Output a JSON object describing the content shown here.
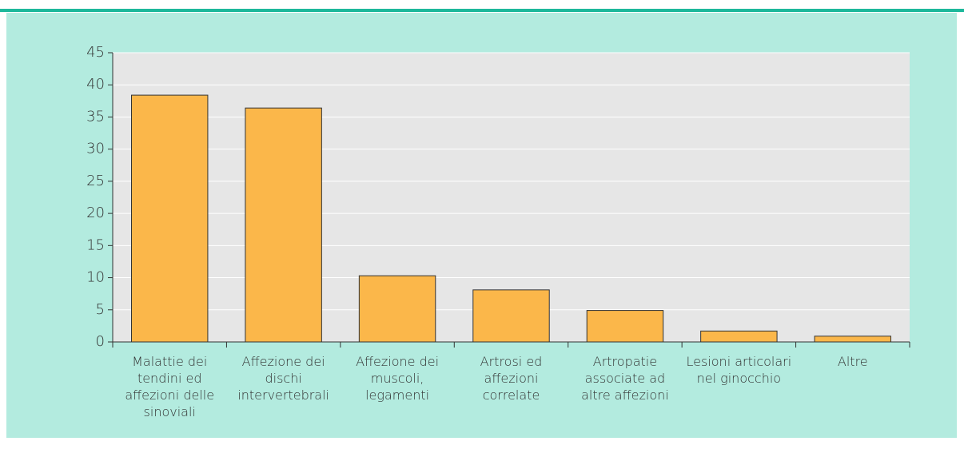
{
  "chart_data": {
    "type": "bar",
    "categories": [
      "Malattie dei tendini ed affezioni delle sinoviali",
      "Affezione dei dischi intervertebrali",
      "Affezione dei muscoli, legamenti",
      "Artrosi ed affezioni correlate",
      "Artropatie associate ad altre affezioni",
      "Lesioni articolari nel ginocchio",
      "Altre"
    ],
    "values": [
      38.4,
      36.4,
      10.3,
      8.1,
      4.9,
      1.7,
      0.9
    ],
    "color": "#fbb74a",
    "ylim": [
      0,
      45
    ],
    "yticks": [
      0,
      5,
      10,
      15,
      20,
      25,
      30,
      35,
      40,
      45
    ],
    "grid": true
  }
}
